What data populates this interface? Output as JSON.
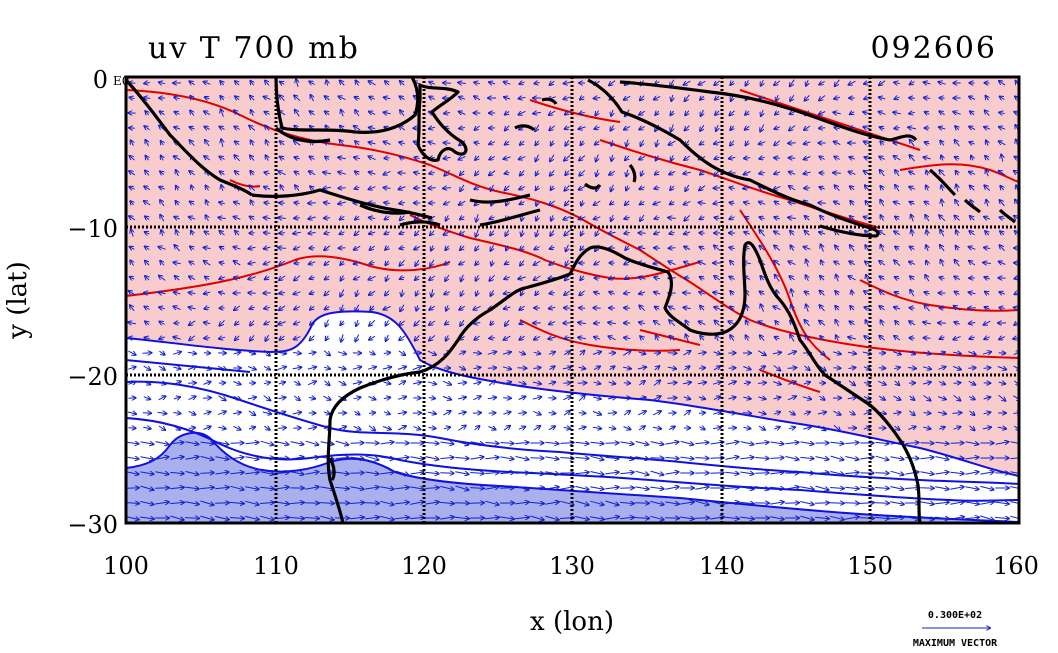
{
  "title": "uv T 700 mb",
  "date": "092606",
  "xlabel": "x (lon)",
  "ylabel": "y (lat)",
  "corner_label": "E0",
  "vector_key": {
    "value": "0.300E+02",
    "label": "MAXIMUM VECTOR"
  },
  "colors": {
    "warm_fill": "#f8cccc",
    "cold_fill": "#aab0ee",
    "warm_contour": "#e00000",
    "cold_contour": "#1010e0",
    "vector": "#1020d0",
    "coast": "#000000",
    "grid": "#000000"
  },
  "chart_data": {
    "type": "map",
    "projection": "lon-lat",
    "xlim": [
      100,
      160
    ],
    "ylim": [
      -30,
      0
    ],
    "xticks": [
      100,
      110,
      120,
      130,
      140,
      150,
      160
    ],
    "yticks": [
      0,
      -10,
      -20,
      -30
    ],
    "xtick_labels": [
      "100",
      "110",
      "120",
      "130",
      "140",
      "150",
      "160"
    ],
    "ytick_labels": [
      "0",
      "−10",
      "−20",
      "−30"
    ],
    "grid": true,
    "fields": [
      "wind vectors (u,v)",
      "temperature contours"
    ],
    "regions": [
      "Indonesia",
      "New Guinea",
      "Australia"
    ]
  }
}
